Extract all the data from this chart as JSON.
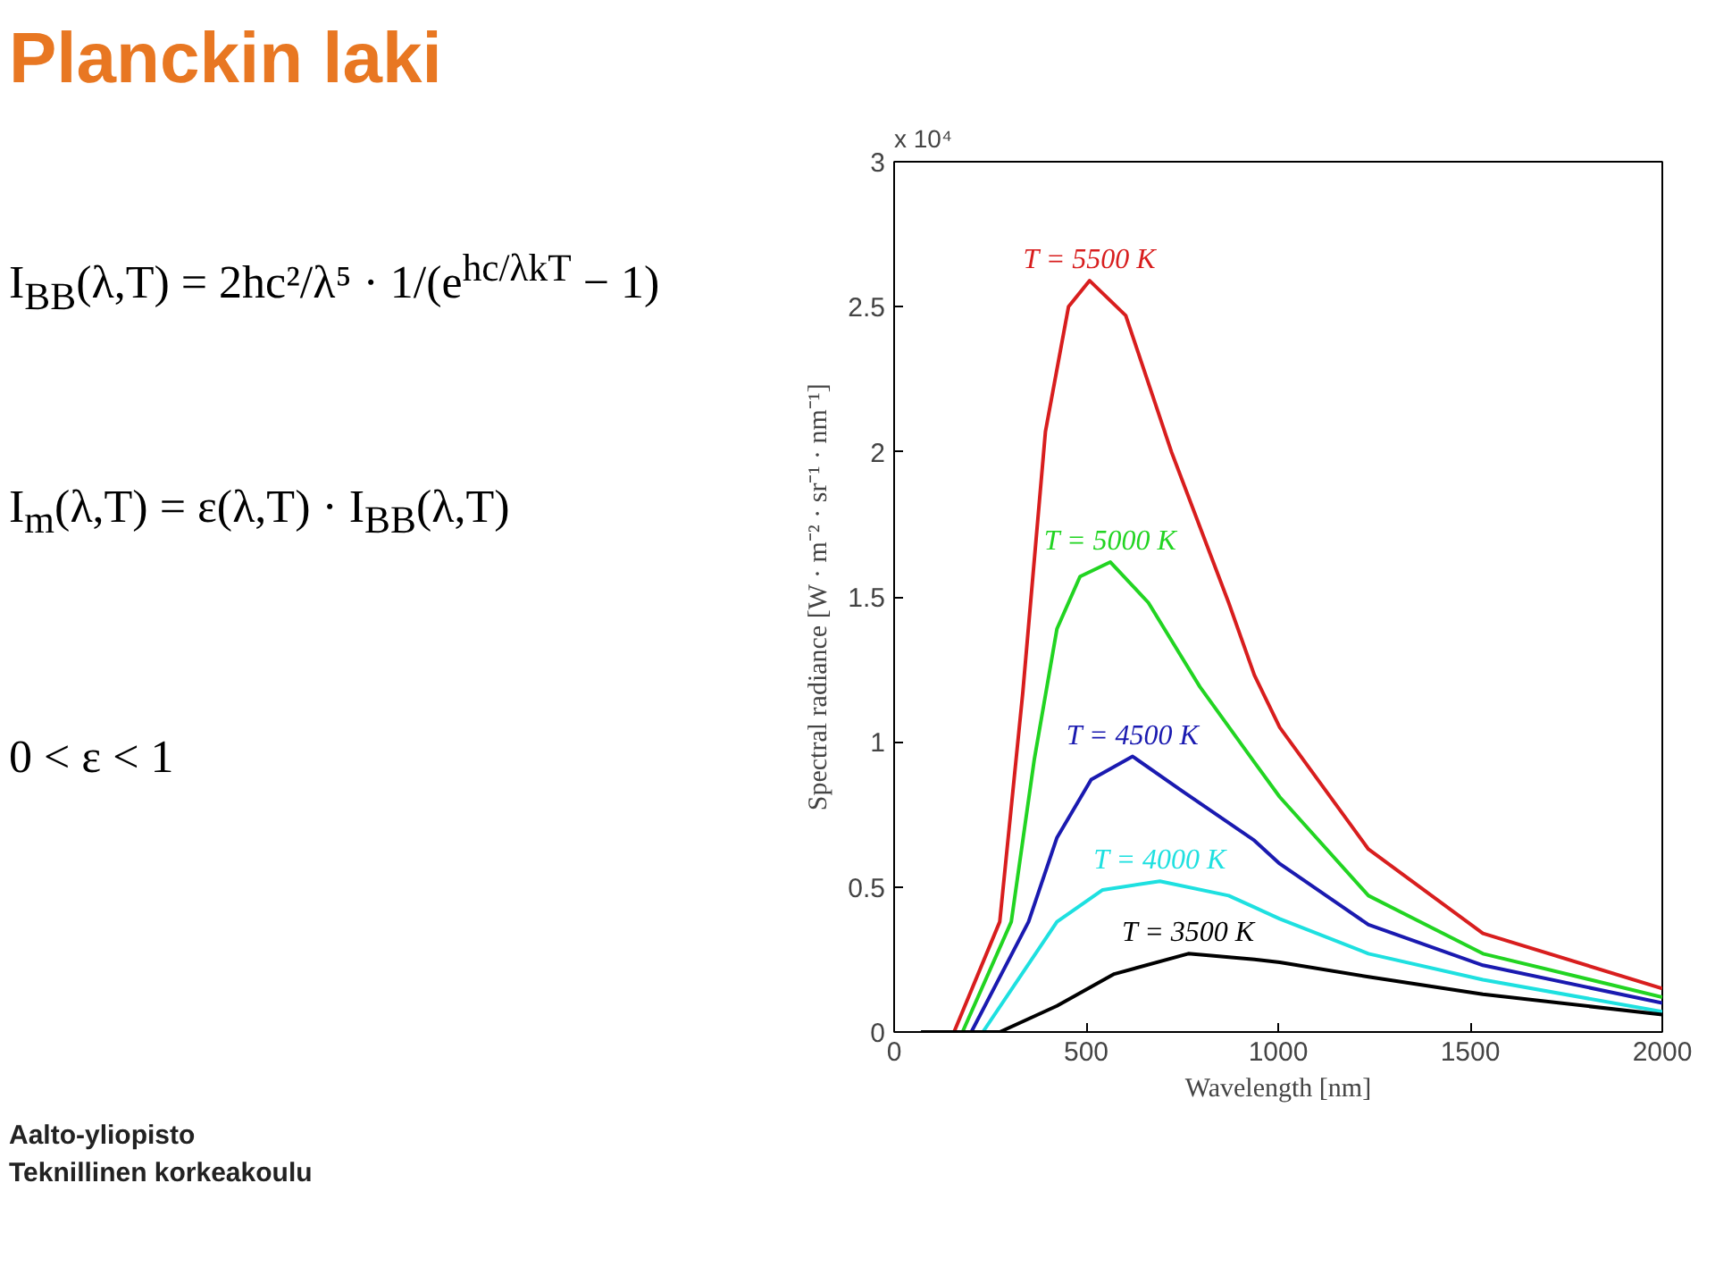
{
  "chart_data": {
    "type": "line",
    "title": "Planckin laki",
    "xlabel": "Wavelength [nm]",
    "ylabel": "Spectral radiance [W · m⁻² · sr⁻¹ · nm⁻¹]",
    "xlim": [
      0,
      2000
    ],
    "ylim": [
      0,
      3
    ],
    "xticks": [
      0,
      500,
      1000,
      1500,
      2000
    ],
    "yticks": [
      0,
      0.5,
      1,
      1.5,
      2,
      2.5,
      3
    ],
    "grid": false,
    "legend": false,
    "line_style": "solid",
    "marker": "none",
    "annotations": [
      "x 10⁴",
      "I$_{BB}$(λ,T) = 2hc²/λ⁵ · 1/(e$^{hc/λkT}$ − 1)",
      "I$_{m}$(λ,T) = ε(λ,T) · I$_{BB}$(λ,T)",
      "0 < ε < 1",
      "Aalto-yliopisto",
      "Teknillinen korkeakoulu"
    ],
    "series": [
      {
        "name": "T = 5500 K",
        "color": "#d81e1e",
        "x": [
          70,
          156,
          275,
          335,
          394,
          454,
          509,
          603,
          722,
          871,
          938,
          1004,
          1235,
          1533,
          2000
        ],
        "values": [
          0,
          0,
          0.38,
          1.17,
          2.07,
          2.5,
          2.59,
          2.47,
          2.0,
          1.48,
          1.23,
          1.05,
          0.63,
          0.34,
          0.15
        ]
      },
      {
        "name": "T = 5000 K",
        "color": "#22d422",
        "x": [
          70,
          178,
          305,
          365,
          424,
          484,
          563,
          662,
          796,
          938,
          1004,
          1235,
          1533,
          2000
        ],
        "values": [
          0,
          0,
          0.38,
          0.94,
          1.39,
          1.57,
          1.62,
          1.48,
          1.19,
          0.93,
          0.81,
          0.47,
          0.27,
          0.12
        ]
      },
      {
        "name": "T = 4500 K",
        "color": "#1a1ab0",
        "x": [
          70,
          201,
          350,
          424,
          513,
          621,
          751,
          938,
          1004,
          1235,
          1533,
          2000
        ],
        "values": [
          0,
          0,
          0.38,
          0.67,
          0.87,
          0.95,
          0.83,
          0.66,
          0.58,
          0.37,
          0.23,
          0.1
        ]
      },
      {
        "name": "T = 4000 K",
        "color": "#1ee0e0",
        "x": [
          70,
          231,
          424,
          543,
          692,
          871,
          938,
          1004,
          1235,
          1533,
          2000
        ],
        "values": [
          0,
          0,
          0.38,
          0.49,
          0.52,
          0.47,
          0.43,
          0.39,
          0.27,
          0.18,
          0.07
        ]
      },
      {
        "name": "T = 3500 K",
        "color": "#000000",
        "x": [
          70,
          275,
          424,
          573,
          766,
          938,
          1004,
          1235,
          1533,
          2000
        ],
        "values": [
          0,
          0,
          0.09,
          0.2,
          0.27,
          0.25,
          0.24,
          0.19,
          0.13,
          0.06
        ]
      }
    ]
  }
}
